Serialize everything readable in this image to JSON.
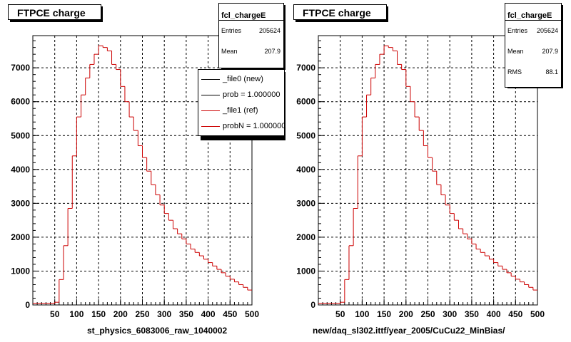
{
  "chart_data": [
    {
      "type": "histogram",
      "title": "FTPCE charge",
      "xlabel": "st_physics_6083006_raw_1040002",
      "xlim": [
        0,
        500
      ],
      "ylim": [
        0,
        7950
      ],
      "grid": true,
      "x_ticks": [
        "50",
        "100",
        "150",
        "200",
        "250",
        "300",
        "350",
        "400",
        "450",
        "500"
      ],
      "y_ticks": [
        "0",
        "1000",
        "2000",
        "3000",
        "4000",
        "5000",
        "6000",
        "7000"
      ],
      "stats": {
        "name": "fcl_chargeE",
        "rows": [
          {
            "label": "Entries",
            "value": "205624"
          },
          {
            "label": "Mean",
            "value": "207.9"
          }
        ]
      },
      "legend": {
        "placement": "top-right",
        "entries": [
          {
            "label": "_file0 (new)",
            "color": "#000000"
          },
          {
            "label": "prob = 1.000000",
            "color": "#000000"
          },
          {
            "label": "_file1 (ref)",
            "color": "#cc0000"
          },
          {
            "label": "probN = 1.000000",
            "color": "#cc0000"
          }
        ]
      },
      "bin_width": 10,
      "series": [
        {
          "color": "#cc0000",
          "bin_low_edges": [
            0,
            10,
            20,
            30,
            40,
            50,
            60,
            70,
            80,
            90,
            100,
            110,
            120,
            130,
            140,
            150,
            160,
            170,
            180,
            190,
            200,
            210,
            220,
            230,
            240,
            250,
            260,
            270,
            280,
            290,
            300,
            310,
            320,
            330,
            340,
            350,
            360,
            370,
            380,
            390,
            400,
            410,
            420,
            430,
            440,
            450,
            460,
            470,
            480,
            490
          ],
          "values": [
            50,
            50,
            50,
            50,
            50,
            80,
            750,
            1750,
            2850,
            4400,
            5550,
            6200,
            6700,
            7100,
            7400,
            7650,
            7600,
            7500,
            7100,
            6950,
            6450,
            6000,
            5550,
            5150,
            4700,
            4350,
            3950,
            3550,
            3250,
            2950,
            2700,
            2500,
            2250,
            2100,
            1950,
            1800,
            1650,
            1550,
            1450,
            1350,
            1250,
            1150,
            1050,
            950,
            850,
            760,
            680,
            600,
            520,
            440
          ]
        }
      ]
    },
    {
      "type": "histogram",
      "title": "FTPCE charge",
      "xlabel": "new/daq_sl302.ittf/year_2005/CuCu22_MinBias/",
      "xlim": [
        0,
        500
      ],
      "ylim": [
        0,
        7950
      ],
      "grid": true,
      "x_ticks": [
        "50",
        "100",
        "150",
        "200",
        "250",
        "300",
        "350",
        "400",
        "450",
        "500"
      ],
      "y_ticks": [
        "0",
        "1000",
        "2000",
        "3000",
        "4000",
        "5000",
        "6000",
        "7000"
      ],
      "stats": {
        "name": "fcl_chargeE",
        "rows": [
          {
            "label": "Entries",
            "value": "205624"
          },
          {
            "label": "Mean",
            "value": "207.9"
          },
          {
            "label": "RMS",
            "value": "88.1"
          }
        ]
      },
      "bin_width": 10,
      "series": [
        {
          "color": "#cc0000",
          "bin_low_edges": [
            0,
            10,
            20,
            30,
            40,
            50,
            60,
            70,
            80,
            90,
            100,
            110,
            120,
            130,
            140,
            150,
            160,
            170,
            180,
            190,
            200,
            210,
            220,
            230,
            240,
            250,
            260,
            270,
            280,
            290,
            300,
            310,
            320,
            330,
            340,
            350,
            360,
            370,
            380,
            390,
            400,
            410,
            420,
            430,
            440,
            450,
            460,
            470,
            480,
            490
          ],
          "values": [
            50,
            50,
            50,
            50,
            50,
            80,
            750,
            1750,
            2850,
            4400,
            5550,
            6200,
            6700,
            7100,
            7400,
            7650,
            7600,
            7500,
            7100,
            6950,
            6450,
            6000,
            5550,
            5150,
            4700,
            4350,
            3950,
            3550,
            3250,
            2950,
            2700,
            2500,
            2250,
            2100,
            1950,
            1800,
            1650,
            1550,
            1450,
            1350,
            1250,
            1150,
            1050,
            950,
            850,
            760,
            680,
            600,
            520,
            440
          ]
        }
      ]
    }
  ]
}
